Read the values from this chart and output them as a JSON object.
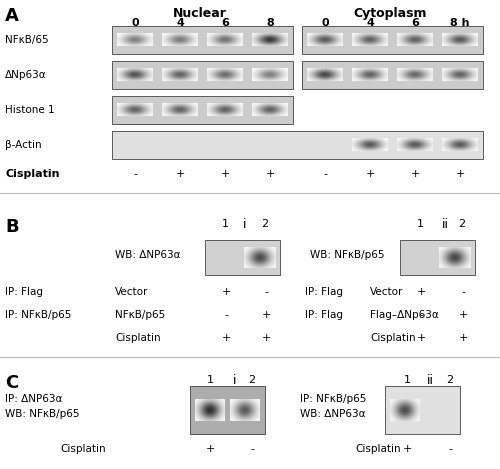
{
  "figure_width": 5.0,
  "figure_height": 4.69,
  "dpi": 100,
  "bg_color": "#ffffff",
  "panel_A": {
    "label": "A",
    "nuclear_label": "Nuclear",
    "cytoplasm_label": "Cytoplasm",
    "time_labels": [
      "0",
      "4",
      "6",
      "8",
      "0",
      "4",
      "6",
      "8 h"
    ],
    "row_labels": [
      "NFκB/65",
      "ΔNp63α",
      "Histone 1",
      "β-Actin"
    ],
    "cisplatin_label": "Cisplatin",
    "cisplatin_values": [
      "-",
      "+",
      "+",
      "+",
      "-",
      "+",
      "+",
      "+"
    ]
  },
  "panel_B": {
    "label": "B",
    "sub_i_label": "i",
    "sub_ii_label": "ii",
    "bi_wb": "WB: ΔNP63α",
    "bi_ip1": "IP: Flag",
    "bi_ip2": "IP: NFκB/p65",
    "bi_row1": "Vector",
    "bi_row2": "NFκB/p65",
    "bi_row3": "Cisplatin",
    "bii_wb": "WB: NFκB/p65",
    "bii_ip1": "IP: Flag",
    "bii_ip2": "IP: Flag",
    "bii_row1": "Vector",
    "bii_row2": "Flag–ΔNp63α",
    "bii_row3": "Cisplatin"
  },
  "panel_C": {
    "label": "C",
    "sub_i_label": "i",
    "sub_ii_label": "ii",
    "ci_ip": "IP: ΔNP63α",
    "ci_wb": "WB: NFκB/p65",
    "ci_cisplatin": "Cisplatin",
    "ci_col1": "+",
    "ci_col2": "-",
    "cii_ip": "IP: NFκB/p65",
    "cii_wb": "WB: ΔNP63α",
    "cii_cisplatin": "Cisplatin",
    "cii_col1": "+",
    "cii_col2": "-"
  }
}
